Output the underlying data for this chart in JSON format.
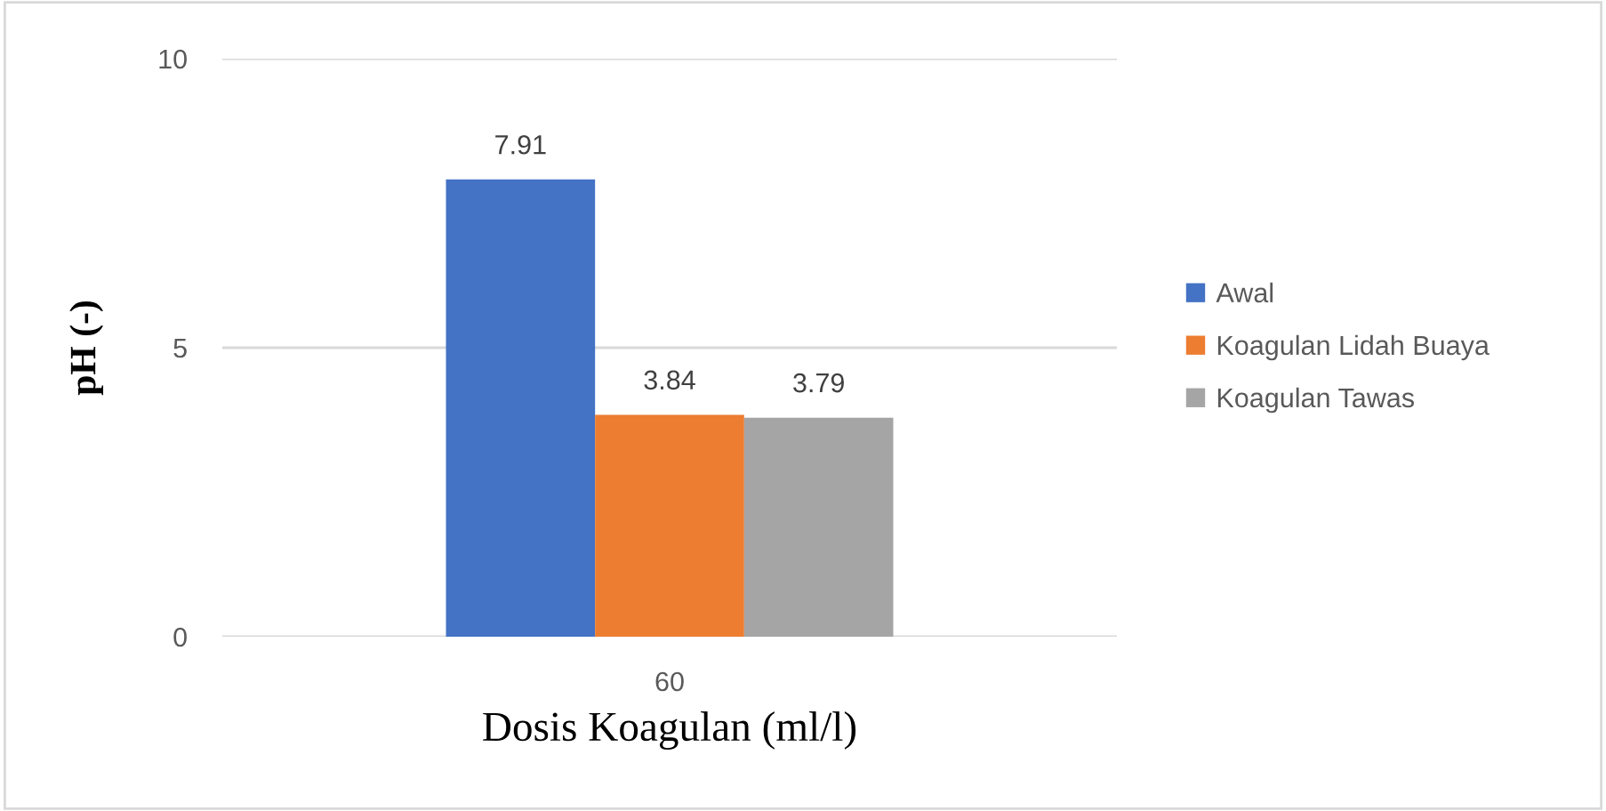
{
  "chart_data": {
    "type": "bar",
    "xlabel": "Dosis Koagulan (ml/l)",
    "ylabel": "pH (-)",
    "categories": [
      "60"
    ],
    "series": [
      {
        "name": "Awal",
        "color": "#4472c4",
        "values": [
          7.91
        ]
      },
      {
        "name": "Koagulan Lidah Buaya",
        "color": "#ed7d31",
        "values": [
          3.84
        ]
      },
      {
        "name": "Koagulan Tawas",
        "color": "#a5a5a5",
        "values": [
          3.79
        ]
      }
    ],
    "ylim": [
      0,
      10
    ],
    "yticks": [
      0,
      5,
      10
    ],
    "grid": "y",
    "legend": "right",
    "data_labels": true
  }
}
